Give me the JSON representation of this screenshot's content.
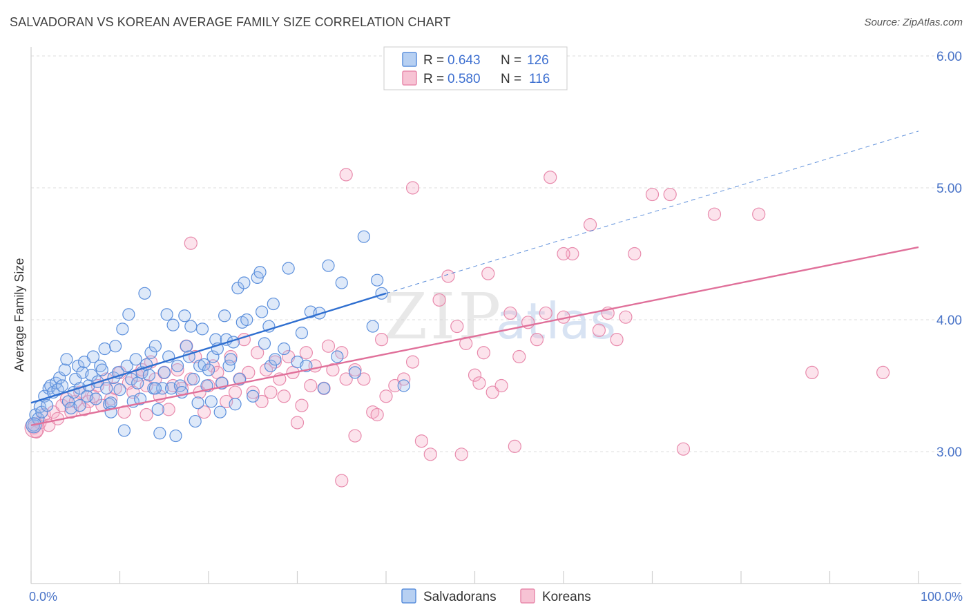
{
  "title": "SALVADORAN VS KOREAN AVERAGE FAMILY SIZE CORRELATION CHART",
  "source": "Source: ZipAtlas.com",
  "watermark": {
    "zip": "ZIP",
    "atlas": "atlas"
  },
  "legend": {
    "r_label": "R =",
    "n_label": "N =",
    "entries": [
      {
        "r": "0.643",
        "n": "126"
      },
      {
        "r": "0.580",
        "n": "116"
      }
    ]
  },
  "chart_data": {
    "type": "scatter",
    "title": "SALVADORAN VS KOREAN AVERAGE FAMILY SIZE CORRELATION CHART",
    "xlabel": "",
    "ylabel": "Average Family Size",
    "xlim": [
      0,
      100
    ],
    "ylim": [
      2.0,
      6.1
    ],
    "x_tick_labels": [
      "0.0%",
      "100.0%"
    ],
    "y_ticks": [
      3.0,
      4.0,
      5.0,
      6.0
    ],
    "y_tick_labels": [
      "3.00",
      "4.00",
      "5.00",
      "6.00"
    ],
    "grid": true,
    "legend_position": "top-center",
    "colors": {
      "salvadorans": "#5b8fdc",
      "koreans": "#e88aac",
      "salv_line": "#2f6fd0",
      "kor_line": "#e0709a",
      "tick": "#4a74c8"
    },
    "series": [
      {
        "name": "Salvadorans",
        "r": 0.643,
        "n": 126,
        "trend": {
          "x0": 0,
          "y0": 3.37,
          "x1": 40,
          "y1": 4.2,
          "dashed_to_x": 100,
          "dashed_to_y": 5.43
        },
        "points": [
          [
            0.3,
            3.2
          ],
          [
            0.5,
            3.28
          ],
          [
            0.8,
            3.25
          ],
          [
            1.0,
            3.34
          ],
          [
            1.2,
            3.3
          ],
          [
            1.5,
            3.42
          ],
          [
            1.8,
            3.35
          ],
          [
            2.0,
            3.48
          ],
          [
            2.2,
            3.5
          ],
          [
            2.5,
            3.45
          ],
          [
            2.8,
            3.52
          ],
          [
            3.0,
            3.47
          ],
          [
            3.2,
            3.56
          ],
          [
            3.5,
            3.5
          ],
          [
            3.8,
            3.62
          ],
          [
            4.0,
            3.7
          ],
          [
            4.2,
            3.38
          ],
          [
            4.5,
            3.33
          ],
          [
            4.8,
            3.45
          ],
          [
            5.0,
            3.55
          ],
          [
            5.3,
            3.65
          ],
          [
            5.5,
            3.48
          ],
          [
            5.8,
            3.6
          ],
          [
            6.0,
            3.68
          ],
          [
            6.3,
            3.42
          ],
          [
            6.5,
            3.5
          ],
          [
            6.8,
            3.58
          ],
          [
            7.0,
            3.72
          ],
          [
            7.3,
            3.4
          ],
          [
            7.5,
            3.53
          ],
          [
            7.8,
            3.65
          ],
          [
            8.0,
            3.62
          ],
          [
            8.3,
            3.78
          ],
          [
            8.5,
            3.48
          ],
          [
            8.8,
            3.36
          ],
          [
            9.0,
            3.3
          ],
          [
            9.3,
            3.56
          ],
          [
            9.5,
            3.8
          ],
          [
            9.8,
            3.6
          ],
          [
            10.0,
            3.47
          ],
          [
            10.3,
            3.93
          ],
          [
            10.5,
            3.16
          ],
          [
            10.8,
            3.65
          ],
          [
            11.0,
            4.04
          ],
          [
            11.3,
            3.55
          ],
          [
            11.5,
            3.38
          ],
          [
            11.8,
            3.7
          ],
          [
            12.0,
            3.52
          ],
          [
            12.3,
            3.4
          ],
          [
            12.5,
            3.6
          ],
          [
            12.8,
            4.2
          ],
          [
            13.0,
            3.66
          ],
          [
            13.3,
            3.58
          ],
          [
            13.5,
            3.75
          ],
          [
            13.8,
            3.48
          ],
          [
            14.0,
            3.8
          ],
          [
            14.3,
            3.32
          ],
          [
            14.5,
            3.14
          ],
          [
            14.8,
            3.48
          ],
          [
            15.0,
            3.6
          ],
          [
            15.3,
            4.04
          ],
          [
            15.5,
            3.72
          ],
          [
            15.8,
            3.48
          ],
          [
            16.0,
            3.96
          ],
          [
            16.3,
            3.12
          ],
          [
            16.5,
            3.65
          ],
          [
            16.8,
            3.5
          ],
          [
            17.0,
            3.45
          ],
          [
            17.3,
            4.03
          ],
          [
            17.5,
            3.8
          ],
          [
            17.8,
            3.72
          ],
          [
            18.0,
            3.95
          ],
          [
            18.3,
            3.55
          ],
          [
            18.5,
            3.23
          ],
          [
            18.8,
            3.37
          ],
          [
            19.0,
            3.65
          ],
          [
            19.3,
            3.93
          ],
          [
            19.5,
            3.66
          ],
          [
            19.8,
            3.5
          ],
          [
            20.0,
            3.62
          ],
          [
            20.3,
            3.38
          ],
          [
            20.5,
            3.72
          ],
          [
            20.8,
            3.85
          ],
          [
            21.0,
            3.78
          ],
          [
            21.3,
            3.3
          ],
          [
            21.5,
            3.52
          ],
          [
            21.8,
            4.03
          ],
          [
            22.0,
            3.85
          ],
          [
            22.3,
            3.65
          ],
          [
            22.5,
            3.7
          ],
          [
            22.8,
            3.83
          ],
          [
            23.0,
            3.36
          ],
          [
            23.3,
            4.24
          ],
          [
            23.5,
            3.55
          ],
          [
            23.8,
            3.98
          ],
          [
            24.0,
            4.28
          ],
          [
            24.3,
            4.0
          ],
          [
            25.0,
            3.42
          ],
          [
            25.5,
            4.32
          ],
          [
            25.8,
            4.36
          ],
          [
            26.0,
            4.06
          ],
          [
            26.3,
            3.82
          ],
          [
            26.8,
            3.95
          ],
          [
            27.0,
            3.65
          ],
          [
            27.3,
            4.12
          ],
          [
            27.5,
            3.7
          ],
          [
            28.5,
            3.78
          ],
          [
            29.0,
            4.39
          ],
          [
            30.0,
            3.68
          ],
          [
            30.5,
            3.9
          ],
          [
            31.0,
            3.65
          ],
          [
            31.5,
            4.06
          ],
          [
            32.5,
            4.05
          ],
          [
            33.0,
            3.48
          ],
          [
            33.5,
            4.41
          ],
          [
            34.5,
            3.72
          ],
          [
            35.0,
            4.28
          ],
          [
            36.5,
            3.6
          ],
          [
            37.5,
            4.63
          ],
          [
            38.5,
            3.95
          ],
          [
            39.0,
            4.3
          ],
          [
            39.5,
            4.2
          ],
          [
            42.0,
            3.5
          ],
          [
            14.0,
            3.48
          ],
          [
            9.0,
            3.37
          ],
          [
            5.5,
            3.35
          ]
        ]
      },
      {
        "name": "Koreans",
        "r": 0.58,
        "n": 116,
        "trend": {
          "x0": 0,
          "y0": 3.2,
          "x1": 100,
          "y1": 4.55
        },
        "points": [
          [
            0.3,
            3.18
          ],
          [
            0.6,
            3.15
          ],
          [
            1.0,
            3.22
          ],
          [
            1.5,
            3.28
          ],
          [
            2.0,
            3.2
          ],
          [
            2.5,
            3.3
          ],
          [
            3.0,
            3.25
          ],
          [
            3.5,
            3.35
          ],
          [
            4.0,
            3.4
          ],
          [
            4.5,
            3.3
          ],
          [
            5.0,
            3.38
          ],
          [
            5.5,
            3.45
          ],
          [
            6.0,
            3.32
          ],
          [
            6.5,
            3.38
          ],
          [
            7.0,
            3.42
          ],
          [
            7.5,
            3.5
          ],
          [
            8.0,
            3.35
          ],
          [
            8.5,
            3.55
          ],
          [
            9.0,
            3.4
          ],
          [
            9.5,
            3.48
          ],
          [
            10.0,
            3.6
          ],
          [
            10.5,
            3.3
          ],
          [
            11.0,
            3.52
          ],
          [
            11.5,
            3.45
          ],
          [
            12.0,
            3.58
          ],
          [
            12.5,
            3.62
          ],
          [
            13.0,
            3.5
          ],
          [
            13.5,
            3.68
          ],
          [
            14.0,
            3.55
          ],
          [
            14.5,
            3.42
          ],
          [
            15.0,
            3.6
          ],
          [
            15.5,
            3.32
          ],
          [
            16.0,
            3.5
          ],
          [
            16.5,
            3.62
          ],
          [
            17.0,
            3.48
          ],
          [
            17.5,
            3.8
          ],
          [
            18.0,
            3.55
          ],
          [
            18.5,
            3.72
          ],
          [
            19.0,
            3.45
          ],
          [
            19.5,
            3.3
          ],
          [
            20.0,
            3.5
          ],
          [
            20.5,
            3.65
          ],
          [
            21.0,
            3.6
          ],
          [
            21.5,
            3.52
          ],
          [
            22.0,
            3.38
          ],
          [
            22.5,
            3.72
          ],
          [
            23.0,
            3.45
          ],
          [
            23.5,
            3.55
          ],
          [
            24.0,
            3.85
          ],
          [
            24.5,
            3.6
          ],
          [
            25.0,
            3.45
          ],
          [
            25.5,
            3.75
          ],
          [
            26.0,
            3.38
          ],
          [
            26.5,
            3.62
          ],
          [
            27.0,
            3.45
          ],
          [
            27.5,
            3.68
          ],
          [
            28.0,
            3.55
          ],
          [
            28.5,
            3.42
          ],
          [
            29.0,
            3.72
          ],
          [
            29.5,
            3.6
          ],
          [
            30.0,
            3.22
          ],
          [
            30.5,
            3.35
          ],
          [
            31.0,
            3.75
          ],
          [
            31.5,
            3.5
          ],
          [
            32.0,
            3.65
          ],
          [
            33.0,
            3.48
          ],
          [
            33.5,
            3.8
          ],
          [
            34.0,
            3.62
          ],
          [
            35.0,
            3.75
          ],
          [
            35.5,
            3.55
          ],
          [
            36.5,
            3.62
          ],
          [
            37.5,
            3.55
          ],
          [
            38.5,
            3.3
          ],
          [
            39.0,
            3.28
          ],
          [
            40.0,
            3.42
          ],
          [
            41.0,
            3.5
          ],
          [
            42.0,
            3.55
          ],
          [
            43.0,
            3.68
          ],
          [
            44.0,
            3.08
          ],
          [
            46.0,
            4.15
          ],
          [
            47.0,
            4.33
          ],
          [
            48.0,
            3.95
          ],
          [
            49.0,
            3.82
          ],
          [
            50.0,
            3.58
          ],
          [
            50.5,
            3.52
          ],
          [
            51.0,
            3.75
          ],
          [
            52.0,
            3.45
          ],
          [
            53.0,
            3.5
          ],
          [
            54.0,
            4.05
          ],
          [
            55.0,
            3.72
          ],
          [
            56.0,
            3.98
          ],
          [
            57.0,
            3.85
          ],
          [
            58.0,
            4.05
          ],
          [
            60.0,
            4.02
          ],
          [
            61.0,
            4.5
          ],
          [
            63.0,
            4.72
          ],
          [
            64.0,
            3.92
          ],
          [
            65.0,
            4.05
          ],
          [
            66.0,
            3.85
          ],
          [
            67.0,
            4.02
          ],
          [
            68.0,
            4.5
          ],
          [
            70.0,
            4.95
          ],
          [
            72.0,
            4.95
          ],
          [
            73.5,
            3.02
          ],
          [
            77.0,
            4.8
          ],
          [
            82.0,
            4.8
          ],
          [
            88.0,
            3.6
          ],
          [
            96.0,
            3.6
          ],
          [
            35.0,
            2.78
          ],
          [
            35.5,
            5.1
          ],
          [
            43.0,
            5.0
          ],
          [
            58.5,
            5.08
          ],
          [
            60.0,
            4.5
          ],
          [
            45.0,
            2.98
          ],
          [
            48.5,
            2.98
          ],
          [
            54.5,
            3.04
          ],
          [
            36.5,
            3.12
          ],
          [
            18.0,
            4.58
          ],
          [
            13.0,
            3.28
          ],
          [
            39.5,
            3.85
          ],
          [
            51.5,
            4.35
          ]
        ]
      }
    ],
    "bottom_legend": [
      "Salvadorans",
      "Koreans"
    ]
  }
}
